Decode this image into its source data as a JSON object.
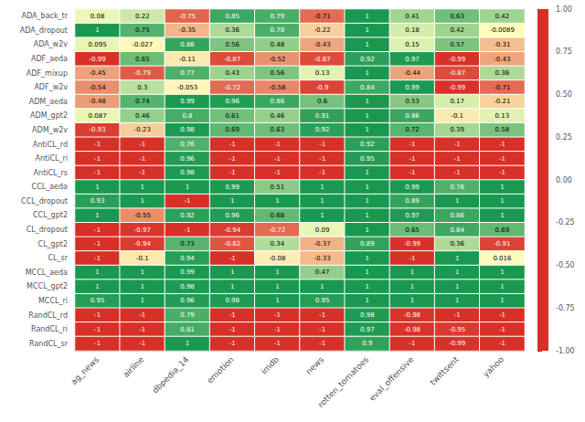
{
  "chart_data": {
    "type": "heatmap",
    "rows": [
      "ADA_back_tr",
      "ADA_dropout",
      "ADA_w2v",
      "ADF_aeda",
      "ADF_mixup",
      "ADF_w2v",
      "ADM_aeda",
      "ADM_gpt2",
      "ADM_w2v",
      "AntiCL_rd",
      "AntiCL_ri",
      "AntiCL_rs",
      "CCL_aeda",
      "CCL_dropout",
      "CCL_gpt2",
      "CL_dropout",
      "CL_gpt2",
      "CL_sr",
      "MCCL_aeda",
      "MCCL_gpt2",
      "MCCL_ri",
      "RandCL_rd",
      "RandCL_ri",
      "RandCL_sr"
    ],
    "cols": [
      "ag_news",
      "airline",
      "dbpedia_14",
      "emotion",
      "imdb",
      "news",
      "rotten_tomatoes",
      "eval_offensive",
      "twittsent",
      "yahoo"
    ],
    "values": [
      [
        0.08,
        0.22,
        -0.75,
        0.85,
        0.79,
        -0.71,
        1.0,
        0.41,
        0.63,
        0.42
      ],
      [
        1.0,
        0.75,
        -0.35,
        0.36,
        0.78,
        -0.22,
        1.0,
        0.18,
        0.42,
        -0.0089
      ],
      [
        0.095,
        -0.027,
        0.88,
        0.56,
        0.48,
        -0.43,
        1.0,
        0.15,
        0.57,
        -0.31
      ],
      [
        -0.99,
        0.65,
        -0.11,
        -0.87,
        -0.52,
        -0.87,
        0.92,
        0.97,
        -0.99,
        -0.43
      ],
      [
        -0.45,
        -0.79,
        0.77,
        0.43,
        0.56,
        0.13,
        1.0,
        -0.44,
        -0.87,
        0.36
      ],
      [
        -0.54,
        0.3,
        -0.053,
        -0.72,
        -0.58,
        -0.9,
        0.84,
        0.99,
        -0.99,
        -0.71
      ],
      [
        -0.48,
        0.74,
        0.99,
        0.96,
        0.86,
        0.6,
        1.0,
        0.53,
        0.17,
        -0.21
      ],
      [
        0.087,
        0.46,
        0.8,
        0.61,
        0.46,
        0.91,
        1.0,
        0.86,
        -0.1,
        0.13
      ],
      [
        -0.93,
        -0.23,
        0.98,
        0.69,
        0.63,
        0.92,
        1.0,
        0.72,
        0.39,
        0.58
      ],
      [
        -1.0,
        -1.0,
        0.76,
        -1.0,
        -1.0,
        -1.0,
        0.92,
        -1.0,
        -1.0,
        -1.0
      ],
      [
        -1.0,
        -1.0,
        0.96,
        -1.0,
        -1.0,
        -1.0,
        0.95,
        -1.0,
        -1.0,
        -1.0
      ],
      [
        -1.0,
        -1.0,
        0.98,
        -1.0,
        -1.0,
        -1.0,
        1.0,
        -1.0,
        -1.0,
        -1.0
      ],
      [
        1.0,
        1.0,
        1.0,
        0.99,
        0.51,
        1.0,
        1.0,
        0.99,
        0.76,
        1.0
      ],
      [
        0.93,
        1.0,
        -1.0,
        1.0,
        1.0,
        1.0,
        1.0,
        0.89,
        1.0,
        1.0
      ],
      [
        1.0,
        -0.55,
        0.92,
        0.96,
        0.68,
        1.0,
        1.0,
        0.97,
        0.86,
        1.0
      ],
      [
        -1.0,
        -0.97,
        -1.0,
        -0.94,
        -0.72,
        0.09,
        1.0,
        0.65,
        0.84,
        0.69
      ],
      [
        -1.0,
        -0.94,
        0.73,
        -0.82,
        0.34,
        -0.37,
        0.89,
        -0.99,
        0.36,
        -0.91
      ],
      [
        -1.0,
        -0.1,
        0.94,
        -1.0,
        -0.08,
        -0.33,
        1.0,
        -1.0,
        1.0,
        0.016
      ],
      [
        1.0,
        1.0,
        0.99,
        1.0,
        1.0,
        0.47,
        1.0,
        1.0,
        1.0,
        1.0
      ],
      [
        1.0,
        1.0,
        0.98,
        1.0,
        1.0,
        1.0,
        1.0,
        1.0,
        1.0,
        1.0
      ],
      [
        0.95,
        1.0,
        0.96,
        0.98,
        1.0,
        0.95,
        1.0,
        1.0,
        1.0,
        1.0
      ],
      [
        -1.0,
        -1.0,
        0.79,
        -1.0,
        -1.0,
        -1.0,
        0.98,
        -0.98,
        -1.0,
        -1.0
      ],
      [
        -1.0,
        -1.0,
        0.81,
        -1.0,
        -1.0,
        -1.0,
        0.97,
        -0.98,
        -0.95,
        -1.0
      ],
      [
        -1.0,
        -1.0,
        1.0,
        -1.0,
        -1.0,
        -1.0,
        0.9,
        -1.0,
        -0.99,
        -1.0
      ]
    ],
    "data_labels": true,
    "colors": [
      "#d73027",
      "#ffffbf",
      "#1a9850"
    ],
    "colorbar_range": [
      -1.0,
      1.0
    ],
    "colorbar_ticks": [
      {
        "value": 1.0,
        "label": "1.00"
      },
      {
        "value": 0.75,
        "label": "0.75"
      },
      {
        "value": 0.5,
        "label": "0.50"
      },
      {
        "value": 0.25,
        "label": "0.25"
      },
      {
        "value": 0.0,
        "label": "0.00"
      },
      {
        "value": -0.25,
        "label": "-0.25"
      },
      {
        "value": -0.5,
        "label": "-0.50"
      },
      {
        "value": -0.75,
        "label": "-0.75"
      },
      {
        "value": -1.0,
        "label": "-1.00"
      }
    ]
  }
}
